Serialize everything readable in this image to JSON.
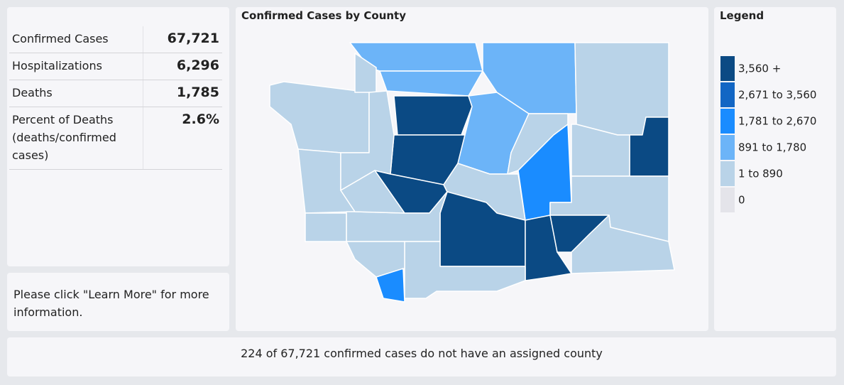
{
  "stats": {
    "rows": [
      {
        "label": [
          "Confirmed Cases"
        ],
        "value": "67,721"
      },
      {
        "label": [
          "Hospitalizations"
        ],
        "value": "6,296"
      },
      {
        "label": [
          "Deaths"
        ],
        "value": "1,785"
      },
      {
        "label": [
          "Percent of Deaths",
          "(deaths/confirmed",
          "cases)"
        ],
        "value": "2.6%"
      }
    ]
  },
  "note": "Please click \"Learn More\" for more information.",
  "map": {
    "title": "Confirmed Cases by County"
  },
  "legend": {
    "title": "Legend",
    "items": [
      {
        "label": "3,560 +",
        "color": "#0b4a84"
      },
      {
        "label": "2,671 to 3,560",
        "color": "#1266c4"
      },
      {
        "label": "1,781 to 2,670",
        "color": "#1a8cff"
      },
      {
        "label": "891 to 1,780",
        "color": "#6cb4f8"
      },
      {
        "label": "1 to 890",
        "color": "#b9d3e8"
      },
      {
        "label": "0",
        "color": "#e4e4ea"
      }
    ]
  },
  "footer": "224 of 67,721 confirmed cases do not have an assigned county"
}
